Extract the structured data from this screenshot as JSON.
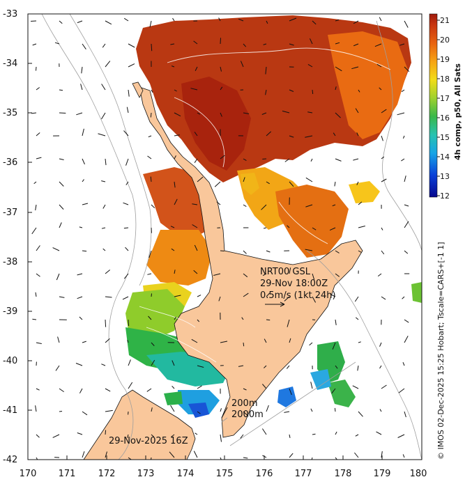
{
  "chart_data": {
    "type": "heatmap",
    "x_ticks": [
      "170",
      "171",
      "172",
      "173",
      "174",
      "175",
      "176",
      "177",
      "178",
      "179",
      "180"
    ],
    "y_ticks": [
      "-33",
      "-34",
      "-35",
      "-36",
      "-37",
      "-38",
      "-39",
      "-40",
      "-41",
      "-42"
    ],
    "xlim": [
      170,
      180
    ],
    "ylim": [
      -42,
      -33
    ],
    "colorbar": {
      "title": "4h comp, p50, All Sats",
      "ticks": [
        "21",
        "20",
        "19",
        "18",
        "17",
        "16",
        "15",
        "14",
        "13",
        "12"
      ],
      "range": [
        12,
        21.5
      ]
    },
    "colors": {
      "land": "#f9c79b",
      "coast": "#111111",
      "contour": "#9e9e9e",
      "ocean": "#ffffff"
    },
    "annotations": {
      "product": "NRT00 GSL",
      "time": "29-Nov 18:00Z",
      "scale": "0.5m/s (1kt 24h)",
      "depth_200": "200m",
      "depth_2000": "2000m",
      "date_label": "29-Nov-2025 16Z"
    },
    "credit": "© IMOS 02-Dec-2025 15:25 Hobart; Tscale=CARS+[-1 1]"
  }
}
